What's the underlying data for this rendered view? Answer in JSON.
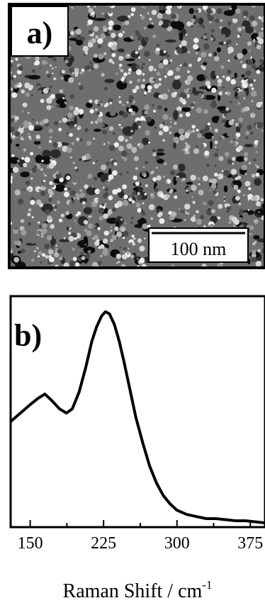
{
  "panel_a": {
    "label": "a)",
    "scale_bar_text": "100 nm"
  },
  "panel_b": {
    "label": "b)"
  },
  "colors": {
    "sem_dark": "#0d0d0d",
    "sem_mid": "#6e6e6e",
    "sem_bright": "#d4d4d4",
    "line": "#000000"
  },
  "chart_data": {
    "type": "line",
    "title": "",
    "xlabel": "Raman Shift / cm",
    "xlabel_superscript": "-1",
    "ylabel": "",
    "xlim": [
      130,
      390
    ],
    "ylim": [
      0,
      1
    ],
    "grid": false,
    "x_ticks": [
      150,
      225,
      300,
      375
    ],
    "series": [
      {
        "x": [
          130,
          140,
          150,
          158,
          165,
          172,
          180,
          187,
          193,
          200,
          207,
          213,
          218,
          223,
          227,
          231,
          236,
          241,
          246,
          252,
          258,
          265,
          272,
          279,
          286,
          293,
          300,
          310,
          320,
          330,
          340,
          350,
          360,
          370,
          380,
          390
        ],
        "values": [
          0.48,
          0.52,
          0.56,
          0.59,
          0.61,
          0.58,
          0.54,
          0.52,
          0.54,
          0.62,
          0.74,
          0.86,
          0.93,
          0.98,
          1.0,
          0.99,
          0.94,
          0.86,
          0.76,
          0.63,
          0.5,
          0.38,
          0.27,
          0.19,
          0.13,
          0.09,
          0.06,
          0.04,
          0.03,
          0.02,
          0.02,
          0.015,
          0.01,
          0.01,
          0.005,
          0.0
        ]
      }
    ]
  }
}
